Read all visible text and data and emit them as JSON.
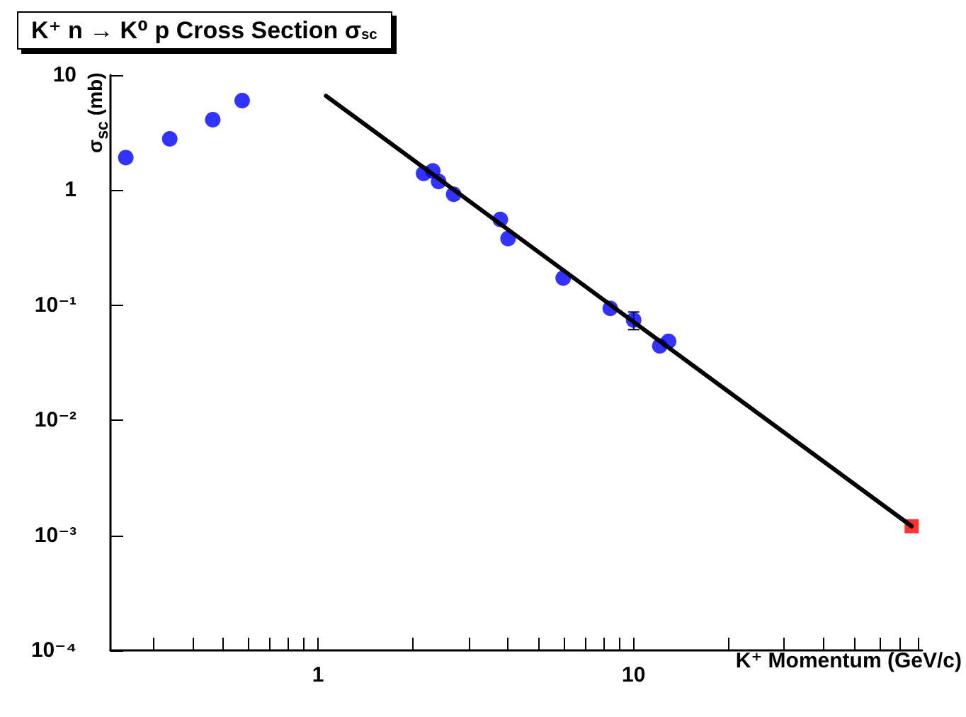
{
  "chart_data": {
    "type": "scatter",
    "title": "K⁺ n → K⁰ p Cross Section σ$_{sc}$",
    "xlabel": "K⁺ Momentum (GeV/c)",
    "ylabel": "σ$_{sc}$ (mb)",
    "log": "xy",
    "marker": "circle",
    "xlim": [
      0.22,
      82
    ],
    "ylim": [
      0.0001,
      10
    ],
    "xticks": [
      {
        "value": 0.3,
        "label": null
      },
      {
        "value": 0.4,
        "label": null
      },
      {
        "value": 0.5,
        "label": null
      },
      {
        "value": 0.6,
        "label": null
      },
      {
        "value": 0.7,
        "label": null
      },
      {
        "value": 0.8,
        "label": null
      },
      {
        "value": 0.9,
        "label": null
      },
      1,
      {
        "value": 2,
        "label": null
      },
      {
        "value": 3,
        "label": null
      },
      {
        "value": 4,
        "label": null
      },
      {
        "value": 5,
        "label": null
      },
      {
        "value": 6,
        "label": null
      },
      {
        "value": 7,
        "label": null
      },
      {
        "value": 8,
        "label": null
      },
      {
        "value": 9,
        "label": null
      },
      10,
      {
        "value": 20,
        "label": null
      },
      {
        "value": 30,
        "label": null
      },
      {
        "value": 40,
        "label": null
      },
      {
        "value": 50,
        "label": null
      },
      {
        "value": 60,
        "label": null
      },
      {
        "value": 70,
        "label": null
      },
      {
        "value": 80,
        "label": null
      }
    ],
    "yticks": [
      {
        "value": 0.0001,
        "label": "10⁻⁴"
      },
      {
        "value": 0.001,
        "label": "10⁻³"
      },
      {
        "value": 0.01,
        "label": "10⁻²"
      },
      {
        "value": 0.1,
        "label": "10⁻¹"
      },
      1,
      10
    ],
    "series": [
      {
        "color": "#0000ff",
        "x": [
          0.246,
          0.339,
          0.464,
          0.575,
          2.16,
          2.31,
          2.41,
          2.69,
          3.78,
          4.0,
          5.98,
          8.43,
          10.0,
          12.1,
          12.9
        ],
        "values": [
          1.92,
          2.79,
          4.1,
          6.0,
          1.4,
          1.47,
          1.19,
          0.92,
          0.557,
          0.38,
          0.172,
          0.094,
          0.0743,
          0.0443,
          0.0486
        ],
        "errors": [
          null,
          null,
          null,
          null,
          null,
          null,
          null,
          null,
          null,
          null,
          null,
          null,
          0.013,
          null,
          null
        ]
      },
      {
        "type": "line",
        "color": "#000000",
        "marker": "none",
        "line_style": "solid",
        "x": [
          1.06,
          76
        ],
        "values": [
          6.6,
          0.0012
        ]
      },
      {
        "color": "#ff0000",
        "marker": "square",
        "x": [
          76
        ],
        "values": [
          0.0012
        ]
      }
    ]
  }
}
